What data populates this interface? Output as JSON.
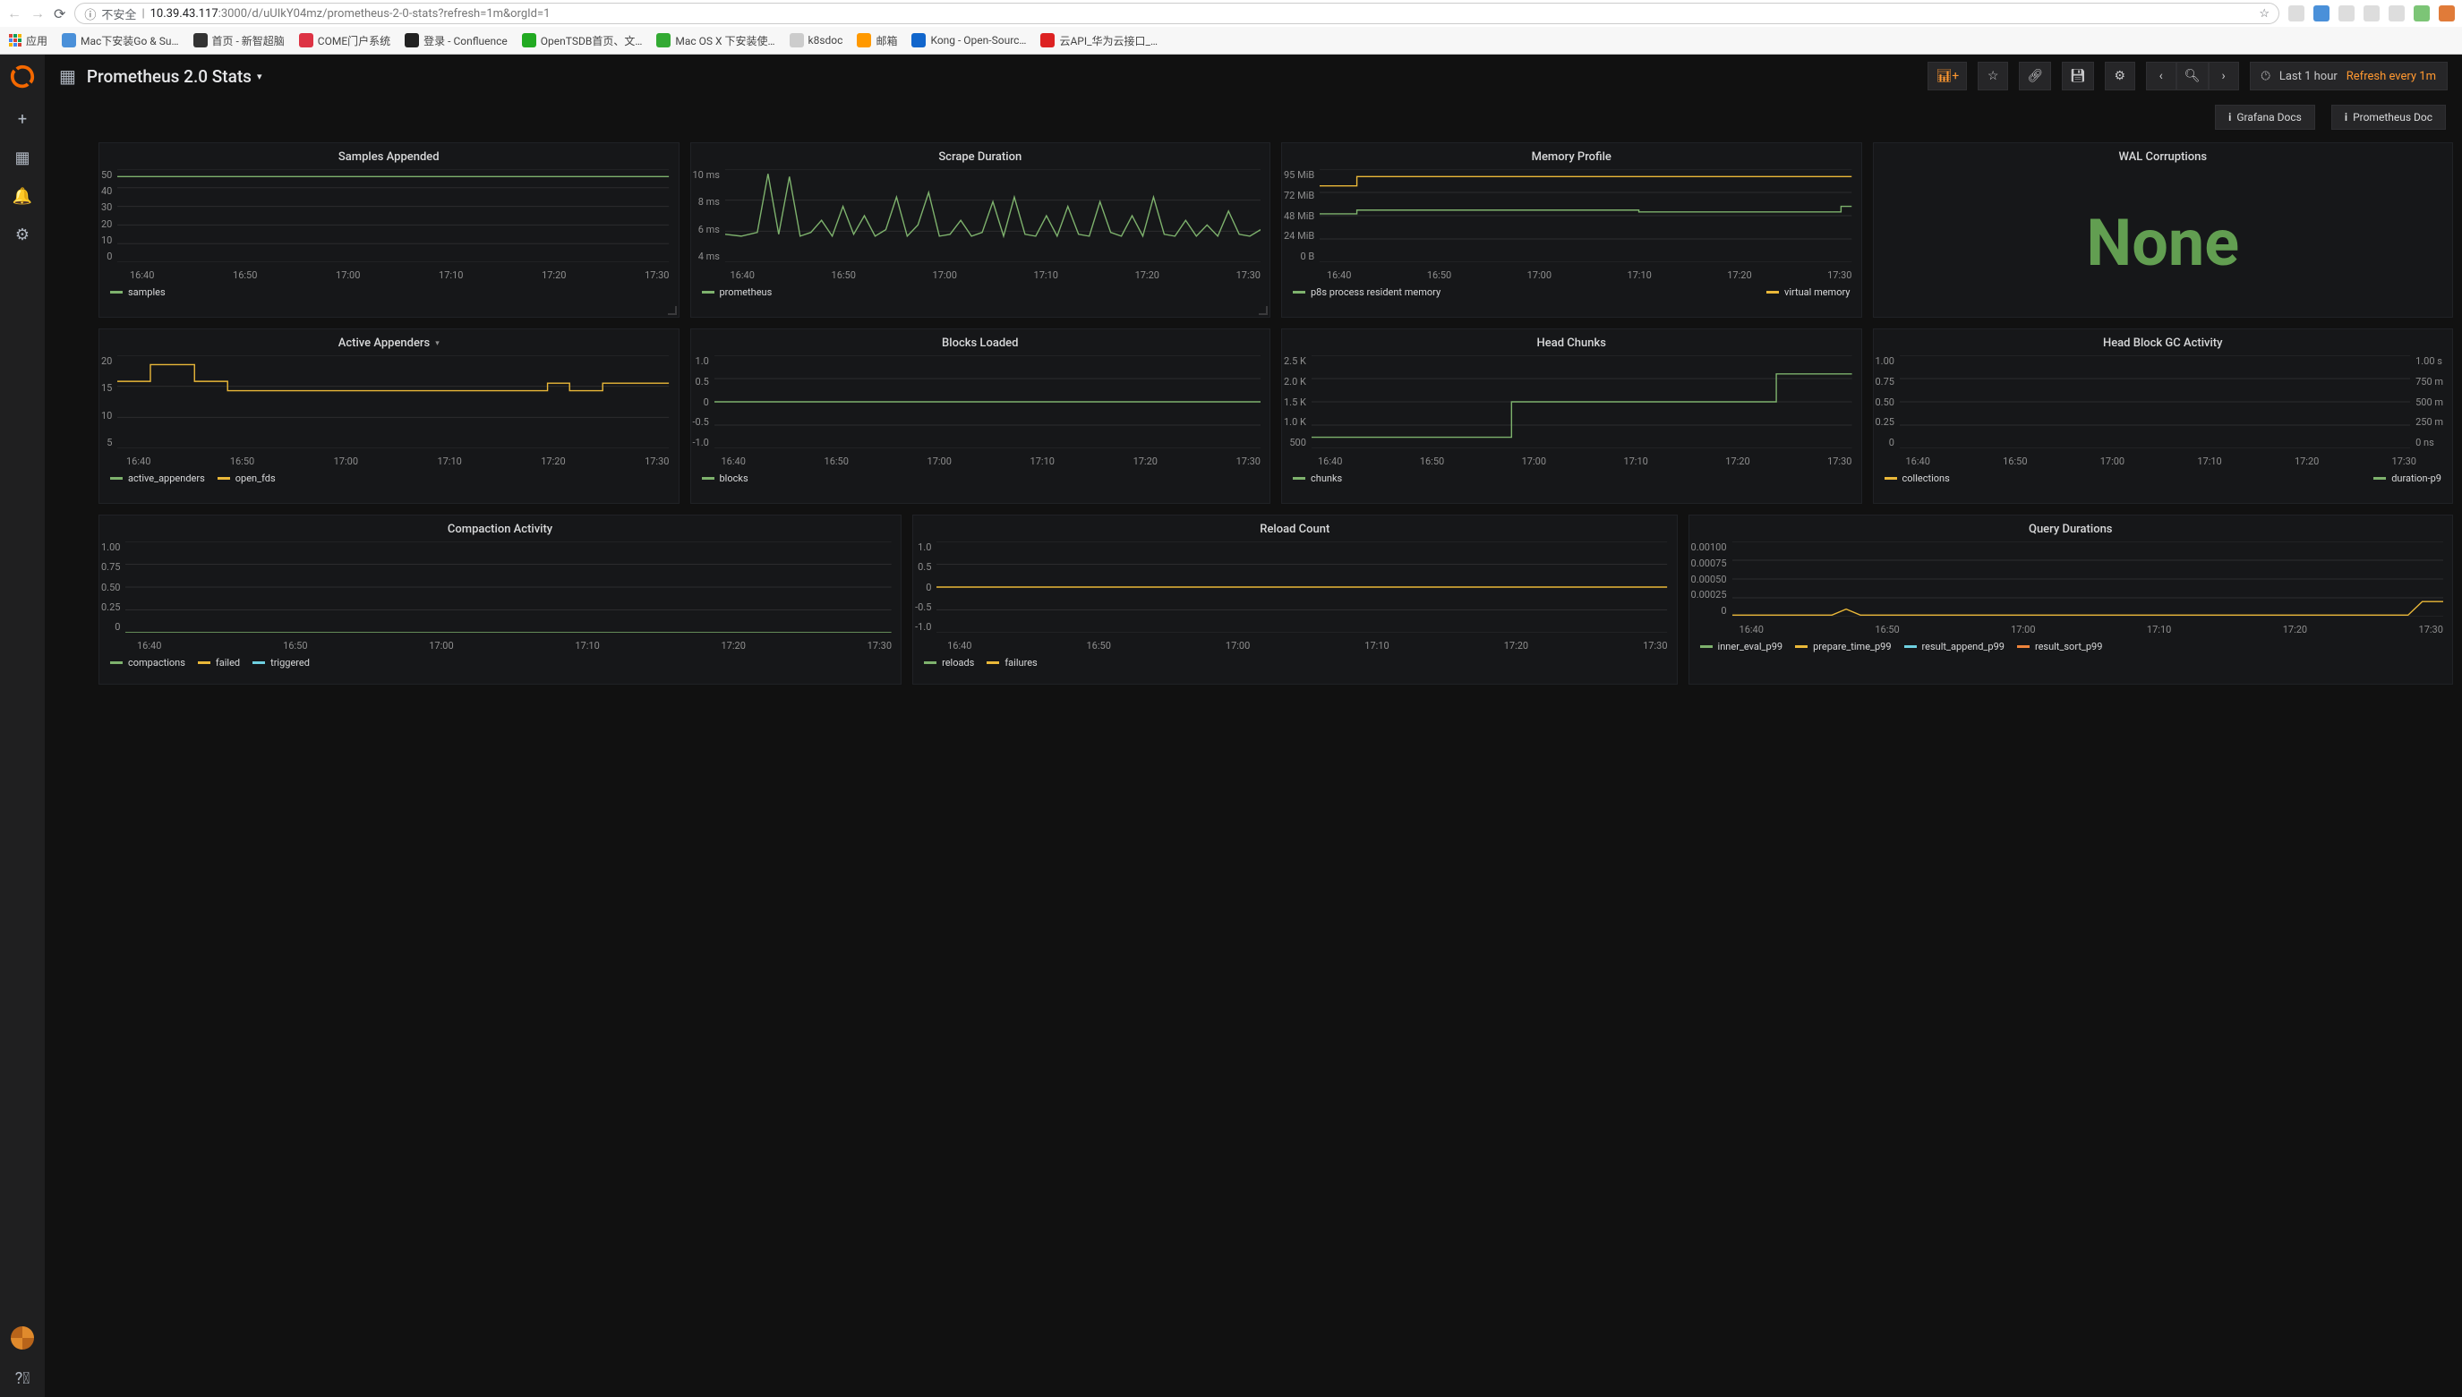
{
  "browser": {
    "insecure_label": "不安全",
    "url_host": "10.39.43.117",
    "url_port_path": ":3000/d/uUIkY04mz/prometheus-2-0-stats?refresh=1m&orgId=1",
    "bookmarks_label": "应用",
    "bookmarks": [
      "Mac下安装Go & Su…",
      "首页 - 新智超脑",
      "COME门户系统",
      "登录 - Confluence",
      "OpenTSDB首页、文…",
      "Mac OS X 下安装使…",
      "k8sdoc",
      "邮箱",
      "Kong - Open-Sourc…",
      "云API_华为云接口_…"
    ]
  },
  "dashboard": {
    "title": "Prometheus 2.0 Stats",
    "time_range": "Last 1 hour",
    "refresh_label": "Refresh every 1m",
    "doc_links": {
      "grafana": "Grafana Docs",
      "prometheus": "Prometheus Doc"
    }
  },
  "colors": {
    "green": "#7eb26d",
    "yellow": "#eab839",
    "blue": "#6ed0e0",
    "orange": "#ef843c",
    "grid": "#2c2c2e",
    "text_dim": "#8e8e8e",
    "stat_green": "#629e51"
  },
  "xaxis_ticks": [
    "16:40",
    "16:50",
    "17:00",
    "17:10",
    "17:20",
    "17:30"
  ],
  "panels": {
    "samples_appended": {
      "title": "Samples Appended",
      "yticks": [
        "50",
        "40",
        "30",
        "20",
        "10",
        "0"
      ],
      "legend": [
        {
          "label": "samples",
          "color": "#7eb26d"
        }
      ],
      "series": [
        {
          "color": "#7eb26d",
          "points": [
            [
              0,
              8
            ],
            [
              100,
              8
            ]
          ]
        }
      ]
    },
    "scrape_duration": {
      "title": "Scrape Duration",
      "yticks": [
        "10 ms",
        "8 ms",
        "6 ms",
        "4 ms"
      ],
      "legend": [
        {
          "label": "prometheus",
          "color": "#7eb26d"
        }
      ],
      "series": [
        {
          "color": "#7eb26d",
          "points": [
            [
              0,
              70
            ],
            [
              3,
              72
            ],
            [
              6,
              68
            ],
            [
              8,
              5
            ],
            [
              10,
              70
            ],
            [
              12,
              8
            ],
            [
              14,
              72
            ],
            [
              16,
              68
            ],
            [
              18,
              55
            ],
            [
              20,
              72
            ],
            [
              22,
              40
            ],
            [
              24,
              70
            ],
            [
              26,
              50
            ],
            [
              28,
              72
            ],
            [
              30,
              65
            ],
            [
              32,
              30
            ],
            [
              34,
              72
            ],
            [
              36,
              60
            ],
            [
              38,
              25
            ],
            [
              40,
              72
            ],
            [
              42,
              70
            ],
            [
              44,
              55
            ],
            [
              46,
              72
            ],
            [
              48,
              68
            ],
            [
              50,
              35
            ],
            [
              52,
              72
            ],
            [
              54,
              30
            ],
            [
              56,
              70
            ],
            [
              58,
              72
            ],
            [
              60,
              50
            ],
            [
              62,
              72
            ],
            [
              64,
              40
            ],
            [
              66,
              70
            ],
            [
              68,
              72
            ],
            [
              70,
              35
            ],
            [
              72,
              68
            ],
            [
              74,
              72
            ],
            [
              76,
              50
            ],
            [
              78,
              72
            ],
            [
              80,
              30
            ],
            [
              82,
              70
            ],
            [
              84,
              72
            ],
            [
              86,
              55
            ],
            [
              88,
              72
            ],
            [
              90,
              60
            ],
            [
              92,
              72
            ],
            [
              94,
              45
            ],
            [
              96,
              70
            ],
            [
              98,
              72
            ],
            [
              100,
              65
            ]
          ]
        }
      ]
    },
    "memory_profile": {
      "title": "Memory Profile",
      "yticks": [
        "95 MiB",
        "72 MiB",
        "48 MiB",
        "24 MiB",
        "0 B"
      ],
      "legend": [
        {
          "label": "p8s process resident memory",
          "color": "#7eb26d"
        },
        {
          "label": "virtual memory",
          "color": "#eab839"
        }
      ],
      "series": [
        {
          "color": "#eab839",
          "points": [
            [
              0,
              18
            ],
            [
              7,
              18
            ],
            [
              7,
              8
            ],
            [
              100,
              8
            ]
          ]
        },
        {
          "color": "#7eb26d",
          "points": [
            [
              0,
              48
            ],
            [
              7,
              48
            ],
            [
              7,
              44
            ],
            [
              60,
              44
            ],
            [
              60,
              46
            ],
            [
              98,
              46
            ],
            [
              98,
              40
            ],
            [
              100,
              40
            ]
          ]
        }
      ]
    },
    "wal_corruptions": {
      "title": "WAL Corruptions",
      "stat_value": "None",
      "stat_color": "#629e51"
    },
    "active_appenders": {
      "title": "Active Appenders",
      "has_caret": true,
      "yticks": [
        "20",
        "15",
        "10",
        "5"
      ],
      "legend": [
        {
          "label": "active_appenders",
          "color": "#7eb26d"
        },
        {
          "label": "open_fds",
          "color": "#eab839"
        }
      ],
      "series": [
        {
          "color": "#eab839",
          "points": [
            [
              0,
              28
            ],
            [
              6,
              28
            ],
            [
              6,
              10
            ],
            [
              14,
              10
            ],
            [
              14,
              28
            ],
            [
              20,
              28
            ],
            [
              20,
              38
            ],
            [
              78,
              38
            ],
            [
              78,
              30
            ],
            [
              82,
              30
            ],
            [
              82,
              38
            ],
            [
              88,
              38
            ],
            [
              88,
              30
            ],
            [
              100,
              30
            ]
          ]
        }
      ]
    },
    "blocks_loaded": {
      "title": "Blocks Loaded",
      "yticks": [
        "1.0",
        "0.5",
        "0",
        "-0.5",
        "-1.0"
      ],
      "legend": [
        {
          "label": "blocks",
          "color": "#7eb26d"
        }
      ],
      "series": [
        {
          "color": "#7eb26d",
          "points": [
            [
              0,
              50
            ],
            [
              100,
              50
            ]
          ]
        }
      ]
    },
    "head_chunks": {
      "title": "Head Chunks",
      "yticks": [
        "2.5 K",
        "2.0 K",
        "1.5 K",
        "1.0 K",
        "500"
      ],
      "legend": [
        {
          "label": "chunks",
          "color": "#7eb26d"
        }
      ],
      "series": [
        {
          "color": "#7eb26d",
          "points": [
            [
              0,
              88
            ],
            [
              37,
              88
            ],
            [
              37,
              50
            ],
            [
              86,
              50
            ],
            [
              86,
              20
            ],
            [
              100,
              20
            ]
          ]
        }
      ]
    },
    "head_gc": {
      "title": "Head Block GC Activity",
      "yticks": [
        "1.00",
        "0.75",
        "0.50",
        "0.25",
        "0"
      ],
      "yticks_right": [
        "1.00 s",
        "750 m",
        "500 m",
        "250 m",
        "0 ns"
      ],
      "legend_left": [
        {
          "label": "collections",
          "color": "#eab839"
        }
      ],
      "legend_right": [
        {
          "label": "duration-p9",
          "color": "#7eb26d"
        }
      ],
      "series": []
    },
    "compaction": {
      "title": "Compaction Activity",
      "yticks": [
        "1.00",
        "0.75",
        "0.50",
        "0.25",
        "0"
      ],
      "legend": [
        {
          "label": "compactions",
          "color": "#7eb26d"
        },
        {
          "label": "failed",
          "color": "#eab839"
        },
        {
          "label": "triggered",
          "color": "#6ed0e0"
        }
      ],
      "series": [
        {
          "color": "#7eb26d",
          "points": [
            [
              0,
              100
            ],
            [
              100,
              100
            ]
          ]
        }
      ]
    },
    "reload": {
      "title": "Reload Count",
      "yticks": [
        "1.0",
        "0.5",
        "0",
        "-0.5",
        "-1.0"
      ],
      "legend": [
        {
          "label": "reloads",
          "color": "#7eb26d"
        },
        {
          "label": "failures",
          "color": "#eab839"
        }
      ],
      "series": [
        {
          "color": "#eab839",
          "points": [
            [
              0,
              50
            ],
            [
              100,
              50
            ]
          ]
        }
      ]
    },
    "query_durations": {
      "title": "Query Durations",
      "yticks": [
        "0.00100",
        "0.00075",
        "0.00050",
        "0.00025",
        "0"
      ],
      "legend": [
        {
          "label": "inner_eval_p99",
          "color": "#7eb26d"
        },
        {
          "label": "prepare_time_p99",
          "color": "#eab839"
        },
        {
          "label": "result_append_p99",
          "color": "#6ed0e0"
        },
        {
          "label": "result_sort_p99",
          "color": "#ef843c"
        }
      ],
      "series": [
        {
          "color": "#eab839",
          "points": [
            [
              0,
              98
            ],
            [
              14,
              98
            ],
            [
              16,
              90
            ],
            [
              18,
              98
            ],
            [
              95,
              98
            ],
            [
              97,
              80
            ],
            [
              100,
              80
            ]
          ]
        }
      ]
    }
  }
}
